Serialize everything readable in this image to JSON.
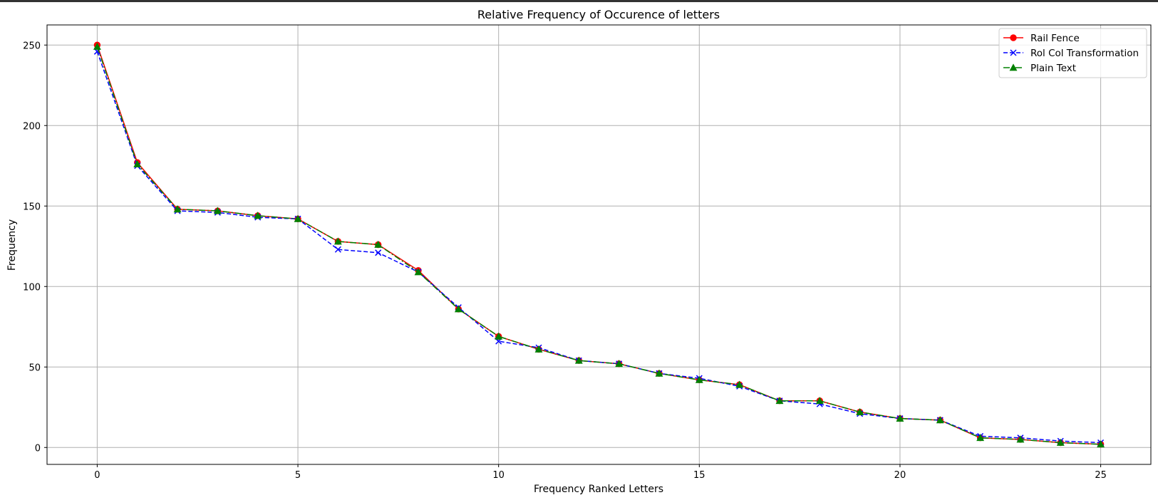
{
  "chart_data": {
    "type": "line",
    "title": "Relative Frequency of Occurence of letters",
    "xlabel": "Frequency Ranked Letters",
    "ylabel": "Frequency",
    "xlim": [
      -1.25,
      26.25
    ],
    "ylim": [
      -10.5,
      262.5
    ],
    "xticks": [
      0,
      5,
      10,
      15,
      20,
      25
    ],
    "yticks": [
      0,
      50,
      100,
      150,
      200,
      250
    ],
    "grid": true,
    "legend_position": "top-right",
    "x": [
      0,
      1,
      2,
      3,
      4,
      5,
      6,
      7,
      8,
      9,
      10,
      11,
      12,
      13,
      14,
      15,
      16,
      17,
      18,
      19,
      20,
      21,
      22,
      23,
      24,
      25
    ],
    "series": [
      {
        "name": "Rail Fence",
        "color": "#ff0000",
        "line_style": "solid",
        "marker": "circle",
        "values": [
          250,
          177,
          148,
          147,
          144,
          142,
          128,
          126,
          110,
          86,
          69,
          61,
          54,
          52,
          46,
          42,
          39,
          29,
          29,
          22,
          18,
          17,
          6,
          5,
          3,
          2
        ]
      },
      {
        "name": "Rol Col Transformation",
        "color": "#0000ff",
        "line_style": "dashed",
        "marker": "x",
        "values": [
          246,
          175,
          147,
          146,
          143,
          142,
          123,
          121,
          109,
          87,
          66,
          62,
          54,
          52,
          46,
          43,
          38,
          29,
          27,
          21,
          18,
          17,
          7,
          6,
          4,
          3
        ]
      },
      {
        "name": "Plain Text",
        "color": "#008000",
        "line_style": "dashdot",
        "marker": "triangle",
        "values": [
          249,
          176,
          148,
          147,
          144,
          142,
          128,
          126,
          109,
          86,
          69,
          61,
          54,
          52,
          46,
          42,
          39,
          29,
          29,
          22,
          18,
          17,
          6,
          5,
          3,
          2
        ]
      }
    ]
  }
}
